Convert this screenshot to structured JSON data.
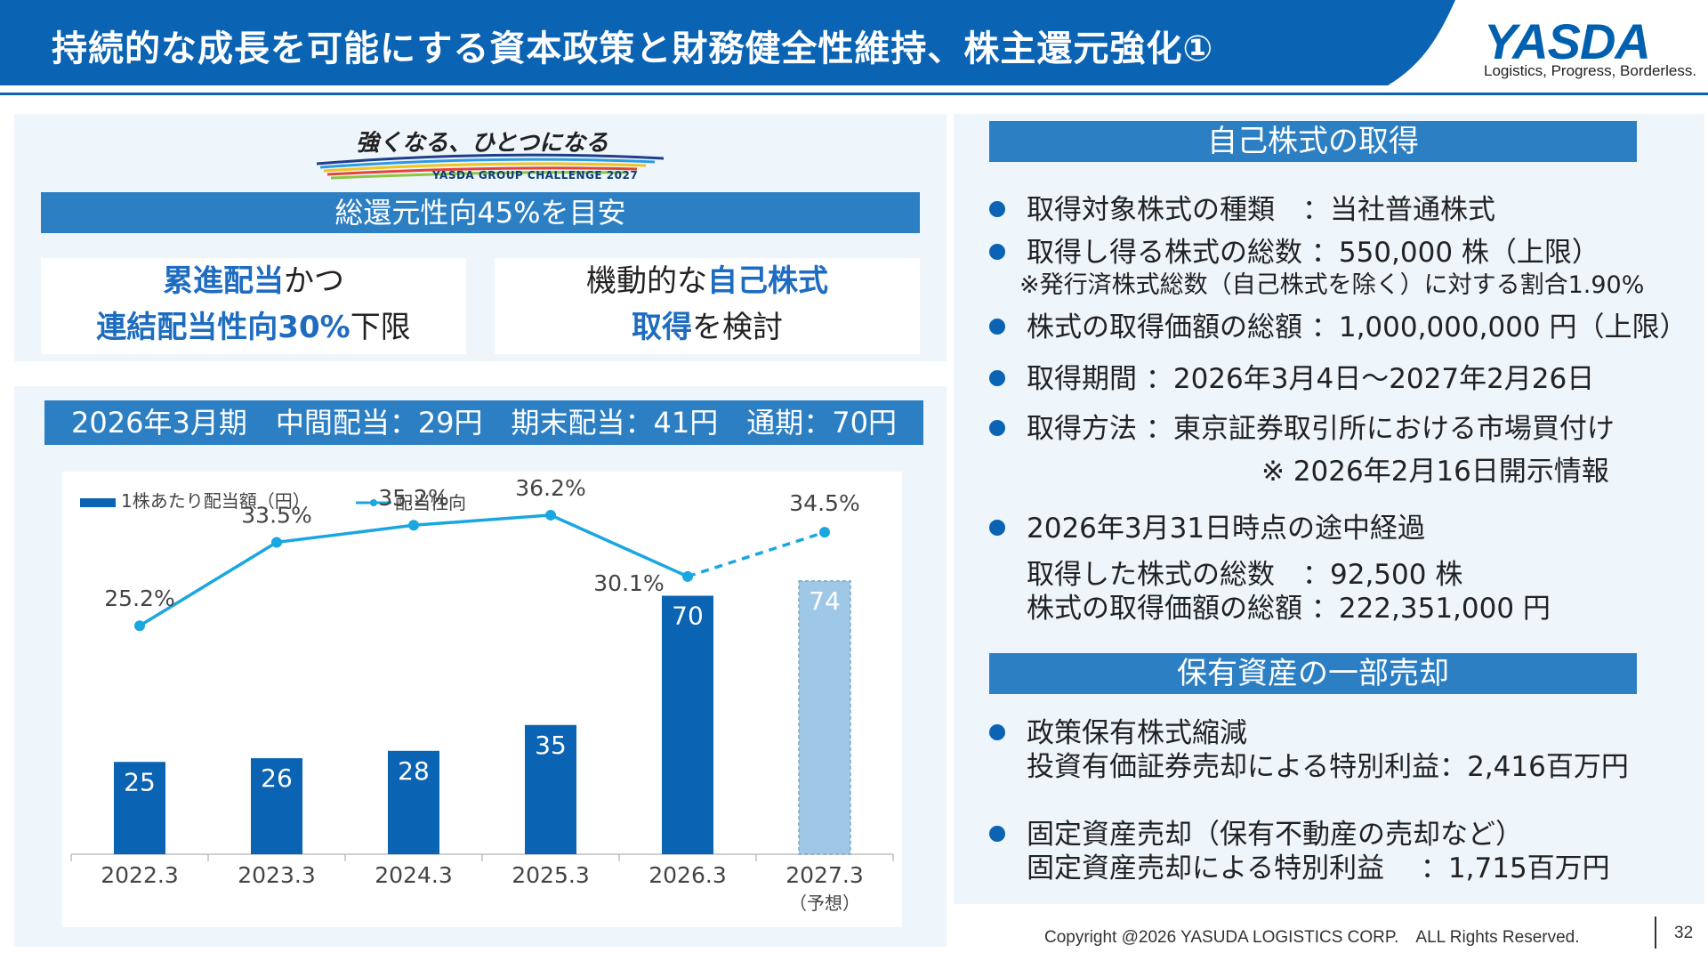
{
  "header": {
    "title": "持続的な成長を可能にする資本政策と財務健全性維持、株主還元強化①",
    "logo_text": "YASDA",
    "logo_tagline": "Logistics, Progress, Borderless."
  },
  "banner": {
    "text": "強くなる、ひとつになる",
    "sub": "YASDA GROUP CHALLENGE 2027"
  },
  "policy": {
    "title": "総還元性向45%を目安",
    "box_left": {
      "l1_hl": "累進配当",
      "l1_rest": "かつ",
      "l2_hl": "連結配当性向30%",
      "l2_rest": "下限"
    },
    "box_right": {
      "l1_pre": "機動的な",
      "l1_hl": "自己株式",
      "l2_hl": "取得",
      "l2_rest": "を検討"
    }
  },
  "dividend_title": "2026年3月期　中間配当：29円　期末配当：41円　通期：70円",
  "chart_data": {
    "type": "bar",
    "categories": [
      "2022.3",
      "2023.3",
      "2024.3",
      "2025.3",
      "2026.3",
      "2027.3"
    ],
    "category_notes": [
      "",
      "",
      "",
      "",
      "",
      "（予想）"
    ],
    "series": [
      {
        "name": "1株あたり配当額（円）",
        "type": "bar",
        "values": [
          25,
          26,
          28,
          35,
          70,
          74
        ],
        "color": "#0b63b3",
        "forecast_color": "#9ec8e6",
        "forecast_index": 5
      },
      {
        "name": "配当性向",
        "type": "line",
        "values": [
          25.2,
          33.5,
          35.2,
          36.2,
          30.1,
          34.5
        ],
        "labels": [
          "25.2%",
          "33.5%",
          "35.2%",
          "36.2%",
          "30.1%",
          "34.5%"
        ],
        "color": "#1aa7e0",
        "forecast_index": 5
      }
    ],
    "bar_labels": [
      "25",
      "26",
      "28",
      "35",
      "70",
      "74"
    ],
    "legend_position": "top-left"
  },
  "buyback": {
    "title": "自己株式の取得",
    "items": [
      "取得対象株式の種類　：当社普通株式",
      "取得し得る株式の総数 ：550,000 株（上限）",
      "株式の取得価額の総額 ：1,000,000,000 円（上限）",
      "取得期間 ：2026年3月4日～2027年2月26日",
      "取得方法 ：東京証券取引所における市場買付け",
      "2026年3月31日時点の途中経過"
    ],
    "ratio_note": "※発行済株式総数（自己株式を除く）に対する割合1.90%",
    "disclosure_note": "※ 2026年2月16日開示情報",
    "progress": [
      "取得した株式の総数　：92,500 株",
      "株式の取得価額の総額 ：222,351,000 円"
    ]
  },
  "asset_sale": {
    "title": "保有資産の一部売却",
    "item1": "政策保有株式縮減",
    "item1_detail": "投資有価証券売却による特別利益：2,416百万円",
    "item2": "固定資産売却（保有不動産の売却など）",
    "item2_detail": "固定資産売却による特別利益　 ：1,715百万円"
  },
  "footer": {
    "copyright": "Copyright @2026 YASUDA LOGISTICS CORP.　ALL Rights Reserved.",
    "page": "32"
  }
}
